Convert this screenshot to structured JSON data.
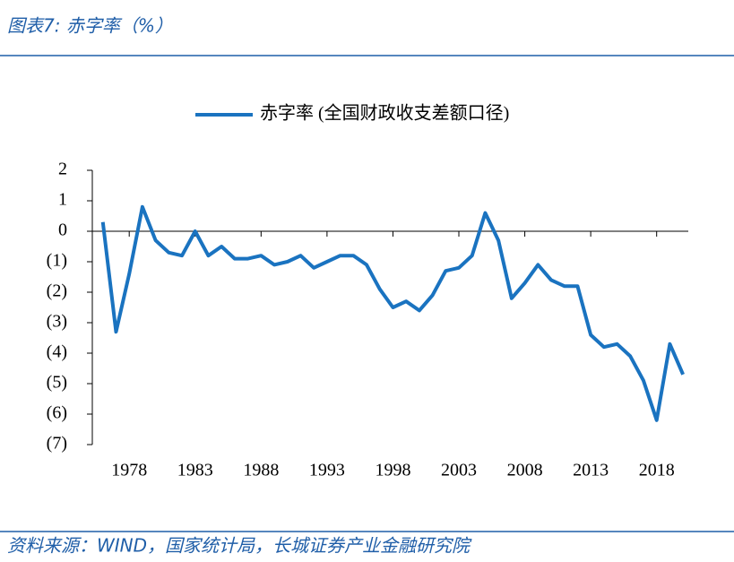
{
  "header": {
    "title": "图表7: 赤字率（%）"
  },
  "footer": {
    "source": "资料来源：WIND，国家统计局，长城证券产业金融研究院"
  },
  "chart_data": {
    "type": "line",
    "x": [
      1976,
      1977,
      1978,
      1979,
      1980,
      1981,
      1982,
      1983,
      1984,
      1985,
      1986,
      1987,
      1988,
      1989,
      1990,
      1991,
      1992,
      1993,
      1994,
      1995,
      1996,
      1997,
      1998,
      1999,
      2000,
      2001,
      2002,
      2003,
      2004,
      2005,
      2006,
      2007,
      2008,
      2009,
      2010,
      2011,
      2012,
      2013,
      2014,
      2015,
      2016,
      2017,
      2018,
      2019,
      2020
    ],
    "series": [
      {
        "name": "赤字率 (全国财政收支差额口径)",
        "color": "#1a73c0",
        "values": [
          0.3,
          -3.3,
          -1.4,
          0.8,
          -0.3,
          -0.7,
          -0.8,
          0.0,
          -0.8,
          -0.5,
          -0.9,
          -0.9,
          -0.8,
          -1.1,
          -1.0,
          -0.8,
          -1.2,
          -1.0,
          -0.8,
          -0.8,
          -1.1,
          -1.9,
          -2.5,
          -2.3,
          -2.6,
          -2.1,
          -1.3,
          -1.2,
          -0.8,
          0.6,
          -0.3,
          -2.2,
          -1.7,
          -1.1,
          -1.6,
          -1.8,
          -1.8,
          -3.4,
          -3.8,
          -3.7,
          -4.1,
          -4.9,
          -6.2,
          -3.7,
          -4.7
        ]
      }
    ],
    "xlim": [
      1975.2,
      2020.4
    ],
    "xticks": [
      1978,
      1983,
      1988,
      1993,
      1998,
      2003,
      2008,
      2013,
      2018
    ],
    "ylim": [
      -7,
      2
    ],
    "yticks": [
      2,
      1,
      0,
      {
        "value": -1,
        "label": "(1)"
      },
      {
        "value": -2,
        "label": "(2)"
      },
      {
        "value": -3,
        "label": "(3)"
      },
      {
        "value": -4,
        "label": "(4)"
      },
      {
        "value": -5,
        "label": "(5)"
      },
      {
        "value": -6,
        "label": "(6)"
      },
      {
        "value": -7,
        "label": "(7)"
      }
    ],
    "negative_tick_color": "#e00000",
    "legend": "top"
  }
}
